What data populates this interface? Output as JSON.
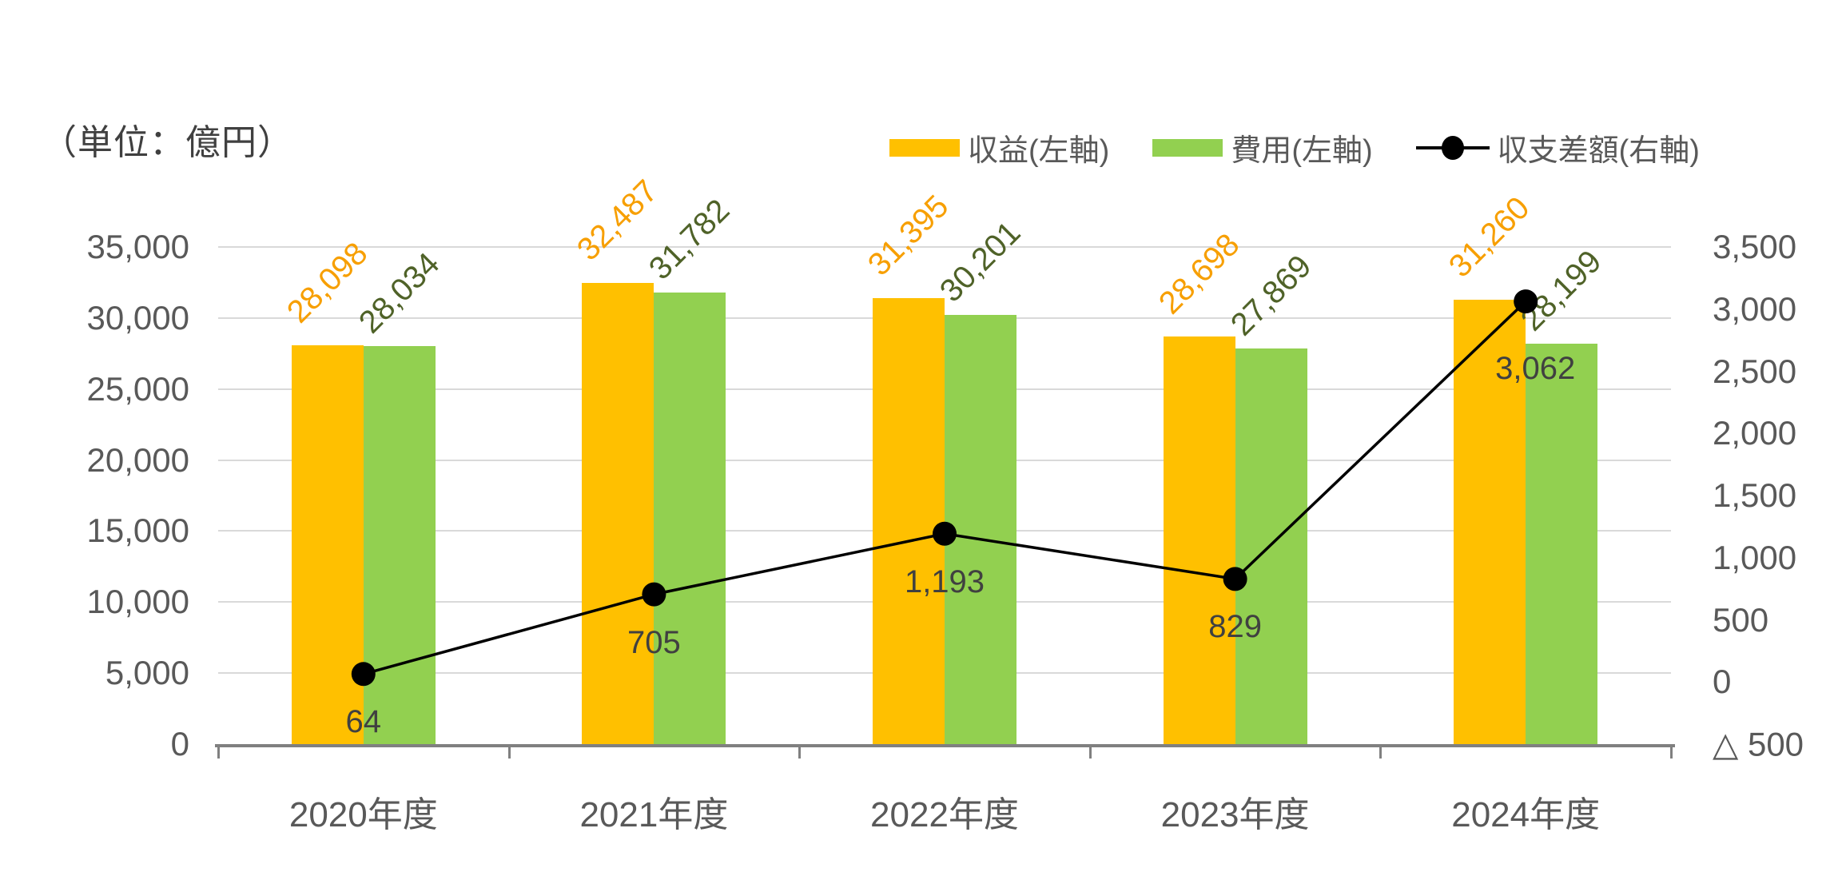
{
  "unit_label": "（単位：億円）",
  "legend": {
    "items": [
      {
        "label": "収益(左軸)",
        "type": "bar",
        "color": "#FFC000"
      },
      {
        "label": "費用(左軸)",
        "type": "bar",
        "color": "#92D050"
      },
      {
        "label": "収支差額(右軸)",
        "type": "line",
        "color": "#000000"
      }
    ]
  },
  "chart_data": {
    "type": "combo",
    "subtypes": [
      "bar",
      "bar",
      "line"
    ],
    "categories": [
      "2020年度",
      "2021年度",
      "2022年度",
      "2023年度",
      "2024年度"
    ],
    "series": [
      {
        "name": "収益(左軸)",
        "type": "bar",
        "axis": "left",
        "color": "#FFC000",
        "label_color": "#F79F00",
        "values": [
          28098,
          32487,
          31395,
          28698,
          31260
        ]
      },
      {
        "name": "費用(左軸)",
        "type": "bar",
        "axis": "left",
        "color": "#92D050",
        "label_color": "#4F6228",
        "values": [
          28034,
          31782,
          30201,
          27869,
          28199
        ]
      },
      {
        "name": "収支差額(右軸)",
        "type": "line",
        "axis": "right",
        "color": "#000000",
        "label_color": "#404040",
        "values": [
          64,
          705,
          1193,
          829,
          3062
        ]
      }
    ],
    "left_axis": {
      "min": 0,
      "max": 35000,
      "step": 5000,
      "tick_labels": [
        "35,000",
        "30,000",
        "25,000",
        "20,000",
        "15,000",
        "10,000",
        "5,000",
        "0"
      ]
    },
    "right_axis": {
      "min": -500,
      "max": 3500,
      "step": 500,
      "tick_labels": [
        "3,500",
        "3,000",
        "2,500",
        "2,000",
        "1,500",
        "1,000",
        "500",
        "0",
        "△ 500"
      ]
    },
    "grid": true,
    "legend_position": "top-right",
    "colors": {
      "gridline": "#D9D9D9",
      "axis_line": "#808080",
      "axis_text": "#595959",
      "point_label_text": "#404040"
    }
  }
}
